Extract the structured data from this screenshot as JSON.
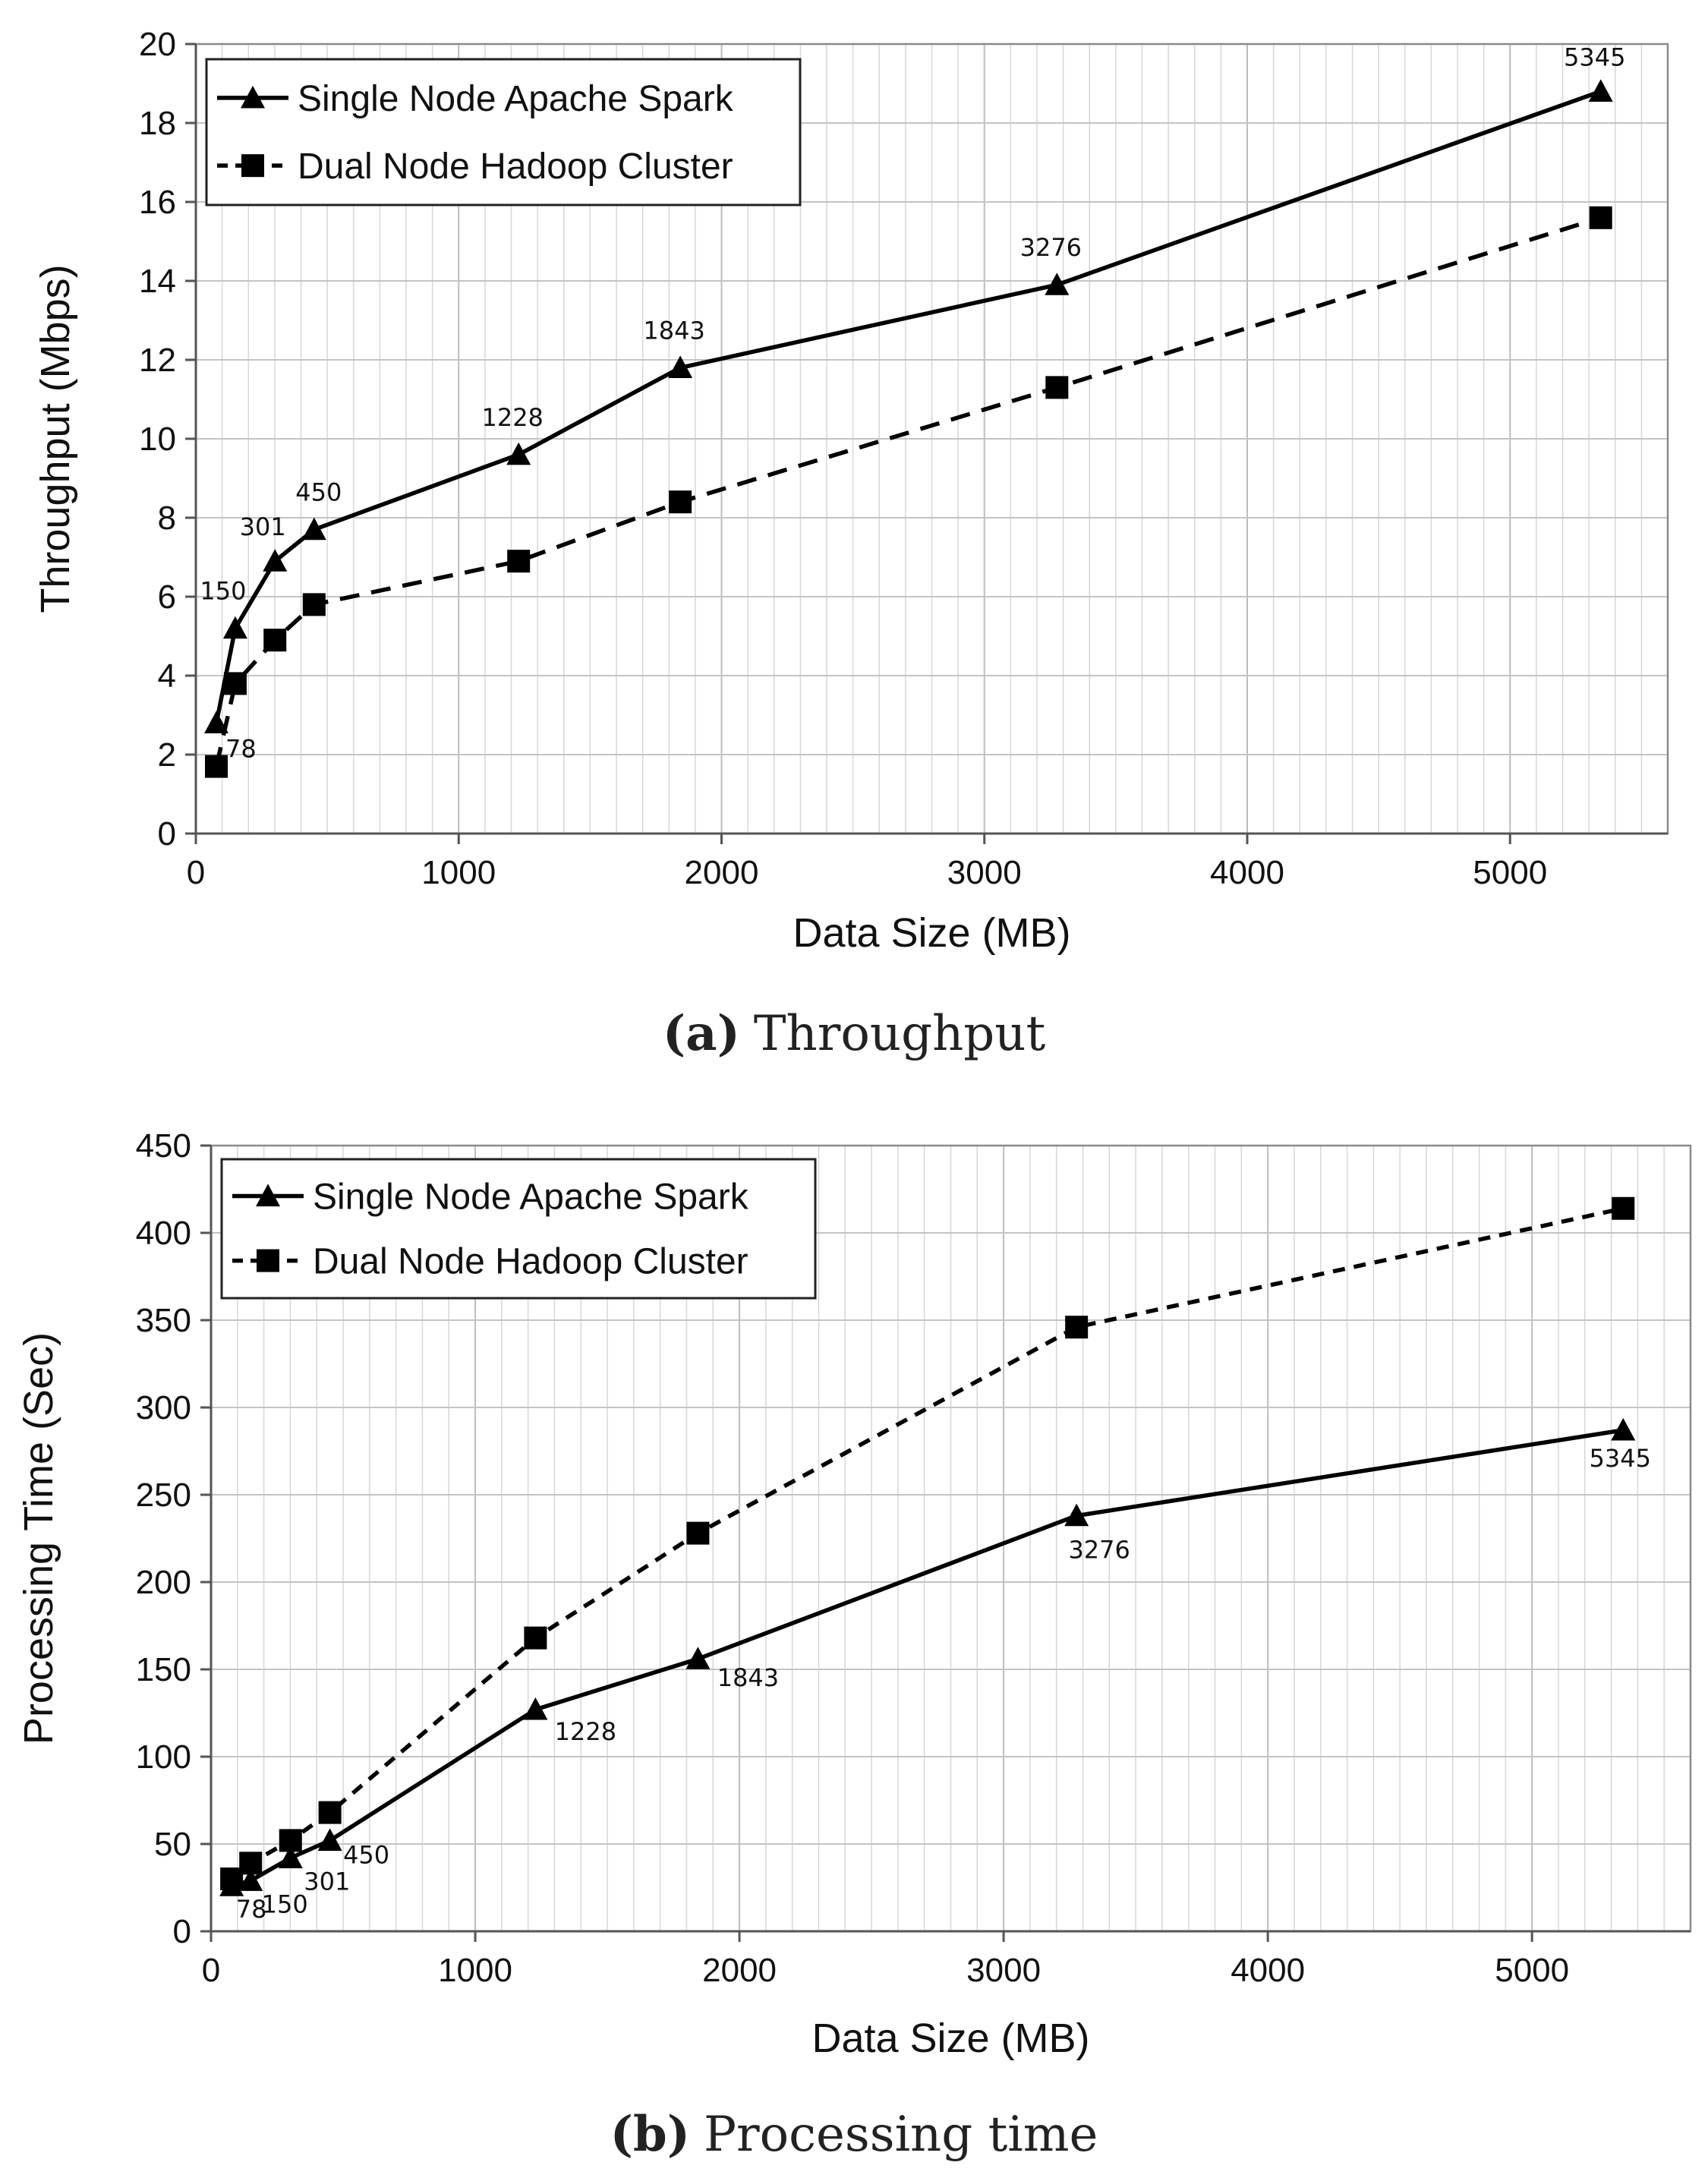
{
  "chart_data": [
    {
      "id": "a",
      "type": "line",
      "caption_letter": "(a)",
      "caption_text": "Throughput",
      "xlabel": "Data Size (MB)",
      "ylabel": "Throughput (Mbps)",
      "xlim": [
        0,
        5600
      ],
      "ylim": [
        0,
        20
      ],
      "xticks": [
        0,
        1000,
        2000,
        3000,
        4000,
        5000
      ],
      "yticks": [
        0,
        2,
        4,
        6,
        8,
        10,
        12,
        14,
        16,
        18,
        20
      ],
      "grid": true,
      "legend_position": "top-left",
      "series": [
        {
          "name": "Single Node Apache Spark",
          "marker": "triangle",
          "line": "solid",
          "x": [
            78,
            150,
            301,
            450,
            1228,
            1843,
            3276,
            5345
          ],
          "y": [
            2.8,
            5.2,
            6.9,
            7.7,
            9.6,
            11.8,
            13.9,
            18.8
          ],
          "labels": [
            "78",
            "150",
            "301",
            "450",
            "1228",
            "1843",
            "3276",
            "5345"
          ]
        },
        {
          "name": "Dual Node Hadoop Cluster",
          "marker": "square",
          "line": "dashed",
          "x": [
            78,
            150,
            301,
            450,
            1228,
            1843,
            3276,
            5345
          ],
          "y": [
            1.7,
            3.8,
            4.9,
            5.8,
            6.9,
            8.4,
            11.3,
            15.6
          ]
        }
      ]
    },
    {
      "id": "b",
      "type": "line",
      "caption_letter": "(b)",
      "caption_text": "Processing time",
      "xlabel": "Data Size (MB)",
      "ylabel": "Processing Time (Sec)",
      "xlim": [
        0,
        5600
      ],
      "ylim": [
        0,
        450
      ],
      "xticks": [
        0,
        1000,
        2000,
        3000,
        4000,
        5000
      ],
      "yticks": [
        0,
        50,
        100,
        150,
        200,
        250,
        300,
        350,
        400,
        450
      ],
      "grid": true,
      "legend_position": "top-left",
      "series": [
        {
          "name": "Single Node Apache Spark",
          "marker": "triangle",
          "line": "solid",
          "x": [
            78,
            150,
            301,
            450,
            1228,
            1843,
            3276,
            5345
          ],
          "y": [
            26,
            29,
            42,
            52,
            127,
            156,
            238,
            287
          ],
          "labels": [
            "78",
            "150",
            "301",
            "450",
            "1228",
            "1843",
            "3276",
            "5345"
          ]
        },
        {
          "name": "Dual Node Hadoop Cluster",
          "marker": "square",
          "line": "dashed",
          "x": [
            78,
            150,
            301,
            450,
            1228,
            1843,
            3276,
            5345
          ],
          "y": [
            30,
            39,
            52,
            68,
            168,
            228,
            346,
            414
          ]
        }
      ]
    }
  ]
}
